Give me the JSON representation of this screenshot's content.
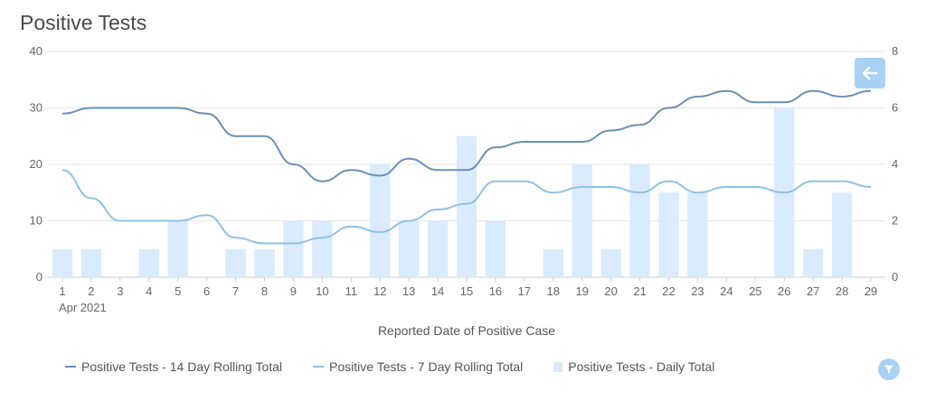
{
  "chart_data": {
    "type": "bar+line",
    "title": "Positive Tests",
    "xlabel": "Reported Date of Positive Case",
    "x_sublabel": "Apr 2021",
    "categories": [
      "1",
      "2",
      "3",
      "4",
      "5",
      "6",
      "7",
      "8",
      "9",
      "10",
      "11",
      "12",
      "13",
      "14",
      "15",
      "16",
      "17",
      "18",
      "19",
      "20",
      "21",
      "22",
      "23",
      "24",
      "25",
      "26",
      "27",
      "28",
      "29"
    ],
    "y_left": {
      "min": 0,
      "max": 40,
      "ticks": [
        "0",
        "10",
        "20",
        "30",
        "40"
      ]
    },
    "y_right": {
      "min": 0,
      "max": 8,
      "ticks": [
        "0",
        "2",
        "4",
        "6",
        "8"
      ]
    },
    "grid": true,
    "legend_position": "bottom",
    "series": [
      {
        "name": "Positive Tests - 14 Day Rolling Total",
        "type": "line",
        "axis": "left",
        "values": [
          29,
          30,
          30,
          30,
          30,
          29,
          25,
          25,
          20,
          17,
          19,
          18,
          21,
          19,
          19,
          23,
          24,
          24,
          24,
          26,
          27,
          30,
          32,
          33,
          31,
          31,
          33,
          32,
          33
        ]
      },
      {
        "name": "Positive Tests - 7 Day Rolling Total",
        "type": "line",
        "axis": "left",
        "values": [
          19,
          14,
          10,
          10,
          10,
          11,
          7,
          6,
          6,
          7,
          9,
          8,
          10,
          12,
          13,
          17,
          17,
          15,
          16,
          16,
          15,
          17,
          15,
          16,
          16,
          15,
          17,
          17,
          16
        ]
      },
      {
        "name": "Positive Tests - Daily Total",
        "type": "bar",
        "axis": "right",
        "values": [
          1,
          1,
          0,
          1,
          2,
          0,
          1,
          1,
          2,
          2,
          0,
          4,
          2,
          2,
          5,
          2,
          0,
          1,
          4,
          1,
          4,
          3,
          3,
          0,
          0,
          6,
          1,
          3,
          0
        ]
      }
    ],
    "colors": {
      "line14": "#6a90b8",
      "line7": "#8fc1e6",
      "bars": "#d9ebfd",
      "grid": "#e6e6e6",
      "button": "#a9d1f5"
    }
  },
  "controls": {
    "back_icon": "arrow-left-icon",
    "filter_icon": "filter-icon"
  }
}
